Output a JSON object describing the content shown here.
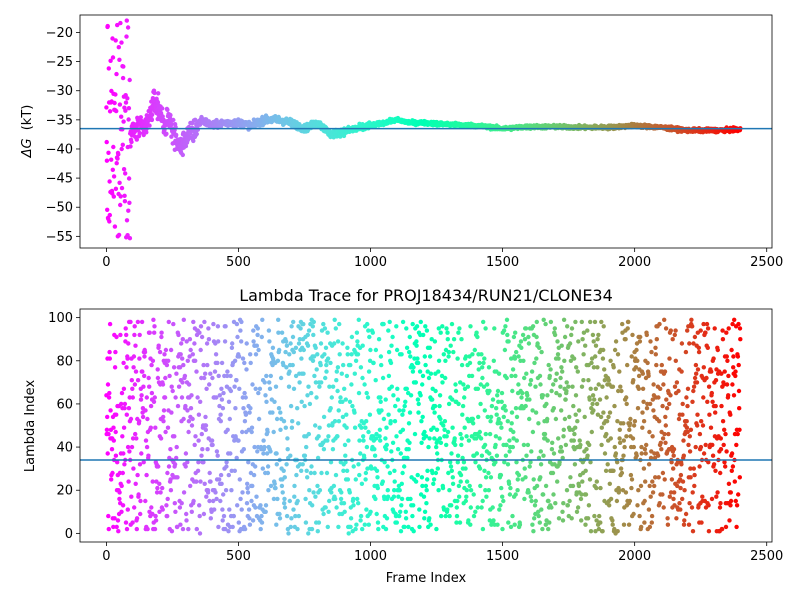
{
  "chart_data": [
    {
      "type": "scatter",
      "title": "",
      "xlabel": "",
      "ylabel_symbol": "ΔG",
      "ylabel_unit": "(kT)",
      "xlim": [
        -100,
        2520
      ],
      "ylim": [
        -57,
        -17
      ],
      "xticks": [
        0,
        500,
        1000,
        1500,
        2000,
        2500
      ],
      "yticks": [
        -55,
        -50,
        -45,
        -40,
        -35,
        -30,
        -25,
        -20
      ],
      "colormap": "rainbow",
      "color_by": "x",
      "hline": -36.5,
      "hline_color": "#1f77b4",
      "legend": "none",
      "grid": false,
      "x_range": [
        0,
        2400
      ],
      "point_count": 2400,
      "series": {
        "x": [
          0,
          10,
          20,
          30,
          40,
          50,
          60,
          70,
          80,
          90,
          100,
          120,
          140,
          160,
          180,
          200,
          220,
          240,
          260,
          280,
          300,
          330,
          360,
          400,
          450,
          500,
          550,
          600,
          650,
          700,
          750,
          800,
          850,
          900,
          950,
          1000,
          1050,
          1100,
          1150,
          1200,
          1300,
          1400,
          1500,
          1600,
          1700,
          1800,
          1900,
          2000,
          2100,
          2200,
          2300,
          2400
        ],
        "y": [
          -20,
          -50,
          -40,
          -34,
          -45,
          -30,
          -40,
          -46,
          -42,
          -38,
          -37,
          -36,
          -37,
          -35,
          -32,
          -33,
          -36,
          -35,
          -38,
          -40,
          -38,
          -37,
          -35,
          -36,
          -35.5,
          -35.5,
          -36,
          -35,
          -35,
          -35.5,
          -36.5,
          -35.5,
          -37.5,
          -37,
          -36.5,
          -36,
          -35.5,
          -35,
          -35.5,
          -35.5,
          -35.8,
          -36,
          -36.5,
          -36.2,
          -36.2,
          -36.3,
          -36.3,
          -36.0,
          -36.3,
          -36.8,
          -36.8,
          -36.7
        ]
      }
    },
    {
      "type": "scatter",
      "title": "Lambda Trace for PROJ18434/RUN21/CLONE34",
      "xlabel": "Frame Index",
      "ylabel": "Lambda Index",
      "xlim": [
        -100,
        2520
      ],
      "ylim": [
        -4,
        104
      ],
      "xticks": [
        0,
        500,
        1000,
        1500,
        2000,
        2500
      ],
      "yticks": [
        0,
        20,
        40,
        60,
        80,
        100
      ],
      "colormap": "rainbow",
      "color_by": "x",
      "hline": 34,
      "hline_color": "#1f77b4",
      "legend": "none",
      "grid": false,
      "x_range": [
        0,
        2400
      ],
      "y_range": [
        0,
        99
      ],
      "point_count": 2400
    }
  ]
}
